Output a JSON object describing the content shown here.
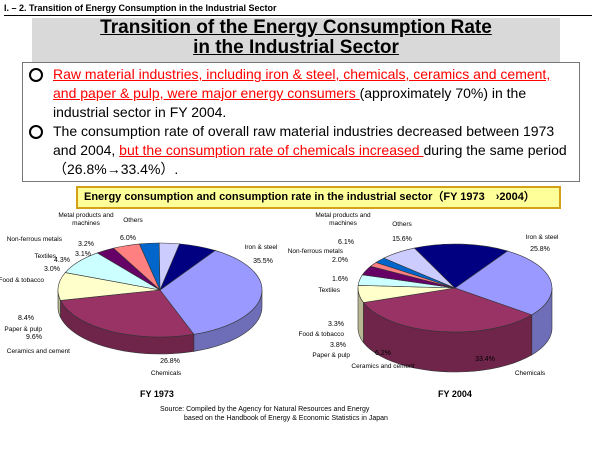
{
  "header": {
    "section": "I. – 2. Transition of Energy Consumption in the Industrial Sector",
    "title_line1": "Transition of the Energy Consumption Rate",
    "title_line2": "in the Industrial Sector"
  },
  "bullets": [
    {
      "red": "Raw material industries, including iron & steel, chemicals, ceramics and cement, and paper & pulp, were major energy consumers ",
      "rest": "(approximately 70%) in the industrial sector in FY 2004."
    },
    {
      "pre": "The consumption rate of overall raw material industries decreased between 1973 and 2004, ",
      "red": "but the consumption rate of chemicals increased ",
      "post": "during the same period（26.8%→33.4%）."
    }
  ],
  "banner": "Energy consumption and consumption rate in the industrial sector（FY 1973　›2004）",
  "source_line1": "Source: Compiled by the Agency for Natural Resources and Energy",
  "source_line2": "based on the Handbook of Energy & Economic Statistics in Japan",
  "chart_data": [
    {
      "type": "pie",
      "title": "FY 1973",
      "slices": [
        {
          "name": "Iron & steel",
          "value": 35.5,
          "label": "35.5%",
          "color": "#9999ff"
        },
        {
          "name": "Chemicals",
          "value": 26.8,
          "label": "26.8%",
          "color": "#993366"
        },
        {
          "name": "Ceramics and cement",
          "value": 9.6,
          "label": "9.6%",
          "color": "#ffffcc"
        },
        {
          "name": "Paper & pulp",
          "value": 8.4,
          "label": "8.4%",
          "color": "#ccffff"
        },
        {
          "name": "Food & tobacco",
          "value": 3.0,
          "label": "3.0%",
          "color": "#660066"
        },
        {
          "name": "Textiles",
          "value": 4.3,
          "label": "4.3%",
          "color": "#ff8080"
        },
        {
          "name": "Non-ferrous metals",
          "value": 3.1,
          "label": "3.1%",
          "color": "#0066cc"
        },
        {
          "name": "Metal products and machines",
          "value": 3.2,
          "label": "3.2%",
          "color": "#ccccff"
        },
        {
          "name": "Others",
          "value": 6.0,
          "label": "6.0%",
          "color": "#000080"
        }
      ],
      "category_labels": [
        "Metal products and machines",
        "Others",
        "Non-ferrous metals",
        "Textiles",
        "Food & tobacco",
        "Iron & steel",
        "Paper & pulp",
        "Ceramics and cement",
        "Chemicals"
      ]
    },
    {
      "type": "pie",
      "title": "FY 2004",
      "slices": [
        {
          "name": "Iron & steel",
          "value": 25.8,
          "label": "25.8%",
          "color": "#9999ff"
        },
        {
          "name": "Chemicals",
          "value": 33.4,
          "label": "33.4%",
          "color": "#993366"
        },
        {
          "name": "Ceramics and cement",
          "value": 6.2,
          "label": "6.2%",
          "color": "#ffffcc"
        },
        {
          "name": "Paper & pulp",
          "value": 3.8,
          "label": "3.8%",
          "color": "#ccffff"
        },
        {
          "name": "Food & tobacco",
          "value": 3.3,
          "label": "3.3%",
          "color": "#660066"
        },
        {
          "name": "Textiles",
          "value": 1.6,
          "label": "1.6%",
          "color": "#ff8080"
        },
        {
          "name": "Non-ferrous metals",
          "value": 2.0,
          "label": "2.0%",
          "color": "#0066cc"
        },
        {
          "name": "Metal products and machines",
          "value": 6.1,
          "label": "6.1%",
          "color": "#ccccff"
        },
        {
          "name": "Others",
          "value": 15.6,
          "label": "15.6%",
          "color": "#000080"
        }
      ],
      "category_labels": [
        "Metal products and machines",
        "Others",
        "Non-ferrous metals",
        "Textiles",
        "Food & tobacco",
        "Iron & steel",
        "Paper & pulp",
        "Ceramics and cement",
        "Chemicals"
      ]
    }
  ]
}
